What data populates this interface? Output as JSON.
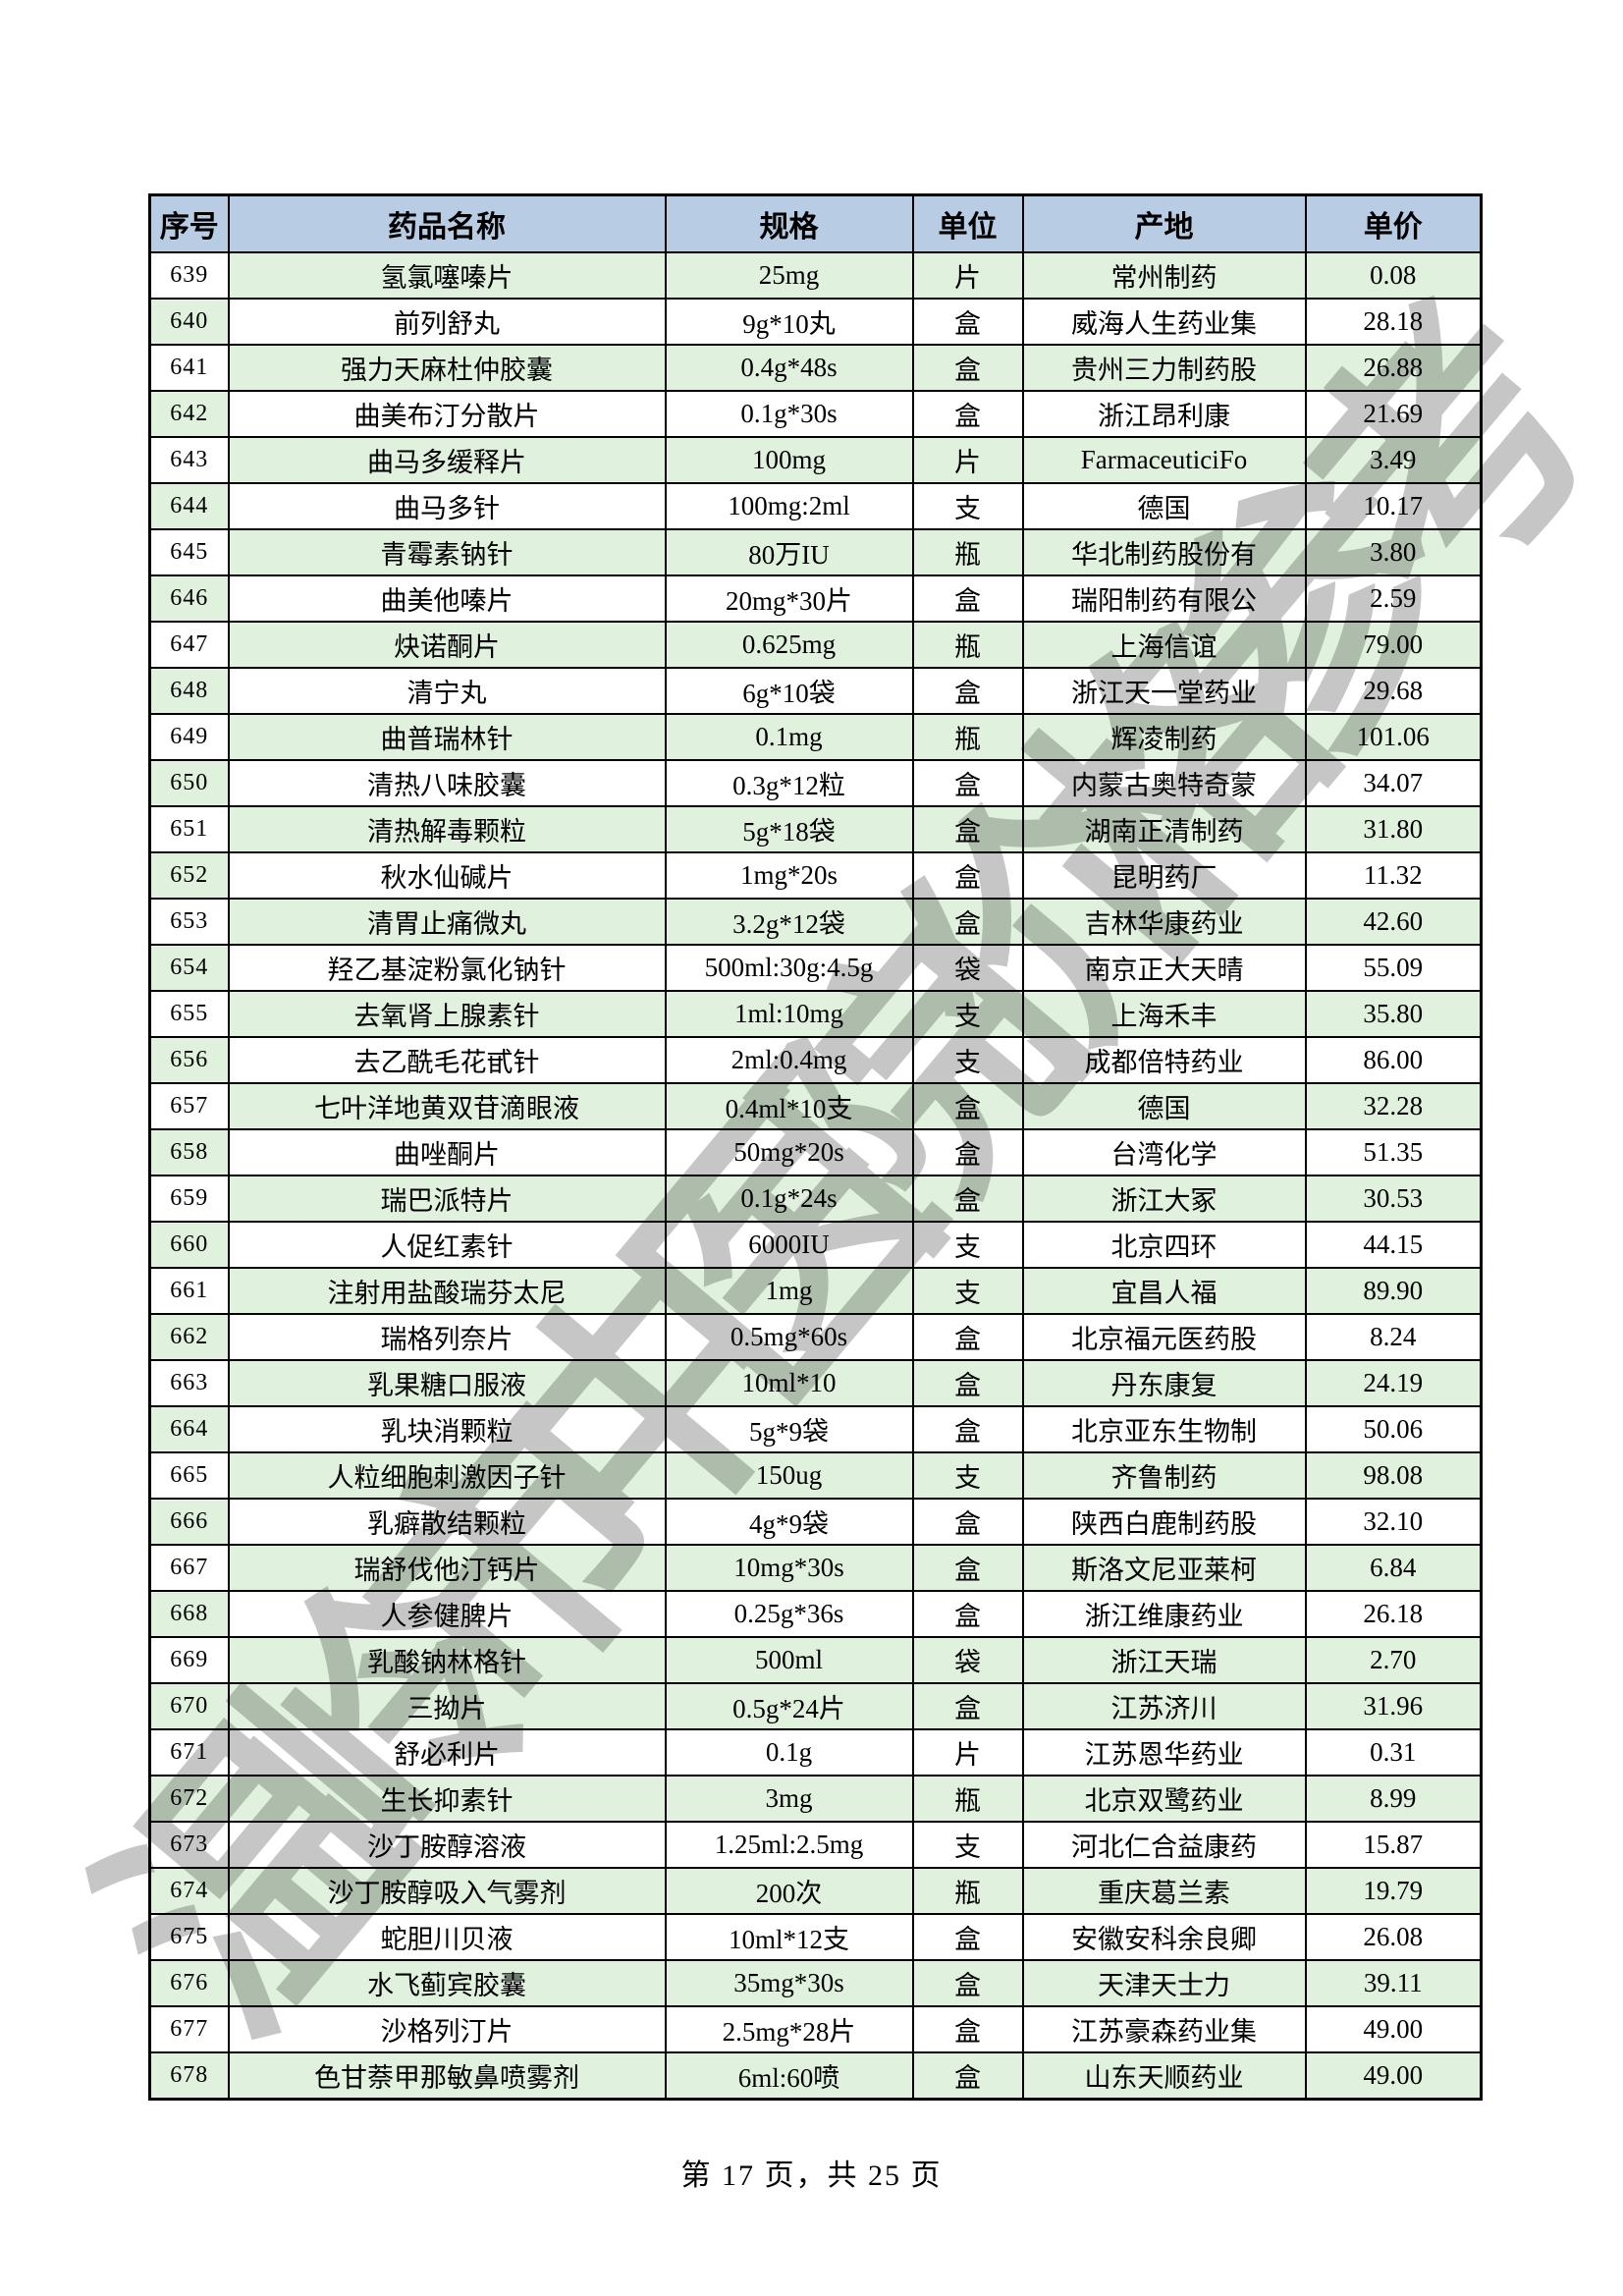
{
  "watermark": {
    "text": "温岭市中医院价格参考",
    "color": "#c6c6c6"
  },
  "footer": {
    "text": "第 17 页，共 25 页"
  },
  "table": {
    "header_bg": "#b8cce4",
    "band_green": "#e0f2de",
    "border_color": "#000000",
    "columns": [
      "序号",
      "药品名称",
      "规格",
      "单位",
      "产地",
      "单价"
    ],
    "rows": [
      {
        "no": "639",
        "name": "氢氯噻嗪片",
        "spec": "25mg",
        "unit": "片",
        "origin": "常州制药",
        "price": "0.08"
      },
      {
        "no": "640",
        "name": "前列舒丸",
        "spec": "9g*10丸",
        "unit": "盒",
        "origin": "威海人生药业集",
        "price": "28.18"
      },
      {
        "no": "641",
        "name": "强力天麻杜仲胶囊",
        "spec": "0.4g*48s",
        "unit": "盒",
        "origin": "贵州三力制药股",
        "price": "26.88"
      },
      {
        "no": "642",
        "name": "曲美布汀分散片",
        "spec": "0.1g*30s",
        "unit": "盒",
        "origin": "浙江昂利康",
        "price": "21.69"
      },
      {
        "no": "643",
        "name": "曲马多缓释片",
        "spec": "100mg",
        "unit": "片",
        "origin": "FarmaceuticiFo",
        "price": "3.49"
      },
      {
        "no": "644",
        "name": "曲马多针",
        "spec": "100mg:2ml",
        "unit": "支",
        "origin": "德国",
        "price": "10.17"
      },
      {
        "no": "645",
        "name": "青霉素钠针",
        "spec": "80万IU",
        "unit": "瓶",
        "origin": "华北制药股份有",
        "price": "3.80"
      },
      {
        "no": "646",
        "name": "曲美他嗪片",
        "spec": "20mg*30片",
        "unit": "盒",
        "origin": "瑞阳制药有限公",
        "price": "2.59"
      },
      {
        "no": "647",
        "name": "炔诺酮片",
        "spec": "0.625mg",
        "unit": "瓶",
        "origin": "上海信谊",
        "price": "79.00"
      },
      {
        "no": "648",
        "name": "清宁丸",
        "spec": "6g*10袋",
        "unit": "盒",
        "origin": "浙江天一堂药业",
        "price": "29.68"
      },
      {
        "no": "649",
        "name": "曲普瑞林针",
        "spec": "0.1mg",
        "unit": "瓶",
        "origin": "辉凌制药",
        "price": "101.06"
      },
      {
        "no": "650",
        "name": "清热八味胶囊",
        "spec": "0.3g*12粒",
        "unit": "盒",
        "origin": "内蒙古奥特奇蒙",
        "price": "34.07"
      },
      {
        "no": "651",
        "name": "清热解毒颗粒",
        "spec": "5g*18袋",
        "unit": "盒",
        "origin": "湖南正清制药",
        "price": "31.80"
      },
      {
        "no": "652",
        "name": "秋水仙碱片",
        "spec": "1mg*20s",
        "unit": "盒",
        "origin": "昆明药厂",
        "price": "11.32"
      },
      {
        "no": "653",
        "name": "清胃止痛微丸",
        "spec": "3.2g*12袋",
        "unit": "盒",
        "origin": "吉林华康药业",
        "price": "42.60"
      },
      {
        "no": "654",
        "name": "羟乙基淀粉氯化钠针",
        "spec": "500ml:30g:4.5g",
        "unit": "袋",
        "origin": "南京正大天晴",
        "price": "55.09"
      },
      {
        "no": "655",
        "name": "去氧肾上腺素针",
        "spec": "1ml:10mg",
        "unit": "支",
        "origin": "上海禾丰",
        "price": "35.80"
      },
      {
        "no": "656",
        "name": "去乙酰毛花甙针",
        "spec": "2ml:0.4mg",
        "unit": "支",
        "origin": "成都倍特药业",
        "price": "86.00"
      },
      {
        "no": "657",
        "name": "七叶洋地黄双苷滴眼液",
        "spec": "0.4ml*10支",
        "unit": "盒",
        "origin": "德国",
        "price": "32.28"
      },
      {
        "no": "658",
        "name": "曲唑酮片",
        "spec": "50mg*20s",
        "unit": "盒",
        "origin": "台湾化学",
        "price": "51.35"
      },
      {
        "no": "659",
        "name": "瑞巴派特片",
        "spec": "0.1g*24s",
        "unit": "盒",
        "origin": "浙江大冢",
        "price": "30.53"
      },
      {
        "no": "660",
        "name": "人促红素针",
        "spec": "6000IU",
        "unit": "支",
        "origin": "北京四环",
        "price": "44.15"
      },
      {
        "no": "661",
        "name": "注射用盐酸瑞芬太尼",
        "spec": "1mg",
        "unit": "支",
        "origin": "宜昌人福",
        "price": "89.90"
      },
      {
        "no": "662",
        "name": "瑞格列奈片",
        "spec": "0.5mg*60s",
        "unit": "盒",
        "origin": "北京福元医药股",
        "price": "8.24"
      },
      {
        "no": "663",
        "name": "乳果糖口服液",
        "spec": "10ml*10",
        "unit": "盒",
        "origin": "丹东康复",
        "price": "24.19"
      },
      {
        "no": "664",
        "name": "乳块消颗粒",
        "spec": "5g*9袋",
        "unit": "盒",
        "origin": "北京亚东生物制",
        "price": "50.06"
      },
      {
        "no": "665",
        "name": "人粒细胞刺激因子针",
        "spec": "150ug",
        "unit": "支",
        "origin": "齐鲁制药",
        "price": "98.08"
      },
      {
        "no": "666",
        "name": "乳癖散结颗粒",
        "spec": "4g*9袋",
        "unit": "盒",
        "origin": "陕西白鹿制药股",
        "price": "32.10"
      },
      {
        "no": "667",
        "name": "瑞舒伐他汀钙片",
        "spec": "10mg*30s",
        "unit": "盒",
        "origin": "斯洛文尼亚莱柯",
        "price": "6.84"
      },
      {
        "no": "668",
        "name": "人参健脾片",
        "spec": "0.25g*36s",
        "unit": "盒",
        "origin": "浙江维康药业",
        "price": "26.18"
      },
      {
        "no": "669",
        "name": "乳酸钠林格针",
        "spec": "500ml",
        "unit": "袋",
        "origin": "浙江天瑞",
        "price": "2.70"
      },
      {
        "no": "670",
        "name": "三拗片",
        "spec": "0.5g*24片",
        "unit": "盒",
        "origin": "江苏济川",
        "price": "31.96"
      },
      {
        "no": "671",
        "name": "舒必利片",
        "spec": "0.1g",
        "unit": "片",
        "origin": "江苏恩华药业",
        "price": "0.31"
      },
      {
        "no": "672",
        "name": "生长抑素针",
        "spec": "3mg",
        "unit": "瓶",
        "origin": "北京双鹭药业",
        "price": "8.99"
      },
      {
        "no": "673",
        "name": "沙丁胺醇溶液",
        "spec": "1.25ml:2.5mg",
        "unit": "支",
        "origin": "河北仁合益康药",
        "price": "15.87"
      },
      {
        "no": "674",
        "name": "沙丁胺醇吸入气雾剂",
        "spec": "200次",
        "unit": "瓶",
        "origin": "重庆葛兰素",
        "price": "19.79"
      },
      {
        "no": "675",
        "name": "蛇胆川贝液",
        "spec": "10ml*12支",
        "unit": "盒",
        "origin": "安徽安科余良卿",
        "price": "26.08"
      },
      {
        "no": "676",
        "name": "水飞蓟宾胶囊",
        "spec": "35mg*30s",
        "unit": "盒",
        "origin": "天津天士力",
        "price": "39.11"
      },
      {
        "no": "677",
        "name": "沙格列汀片",
        "spec": "2.5mg*28片",
        "unit": "盒",
        "origin": "江苏豪森药业集",
        "price": "49.00"
      },
      {
        "no": "678",
        "name": "色甘萘甲那敏鼻喷雾剂",
        "spec": "6ml:60喷",
        "unit": "盒",
        "origin": "山东天顺药业",
        "price": "49.00"
      }
    ]
  }
}
